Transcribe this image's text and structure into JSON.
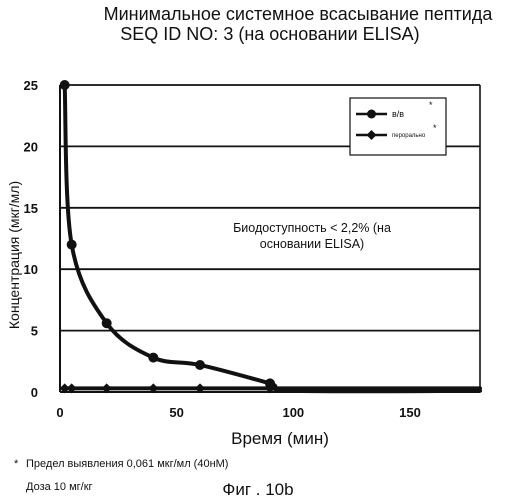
{
  "chart_data": {
    "type": "line",
    "title_lines": [
      "Минимальное системное всасывание пептида",
      "SEQ ID NO: 3 (на основании ELISA)"
    ],
    "xlabel": "Время (мин)",
    "ylabel": "Концентрация (мкг/мл)",
    "xlim": [
      0,
      180
    ],
    "ylim": [
      0,
      25
    ],
    "x_ticks": [
      0,
      50,
      100,
      150
    ],
    "y_ticks": [
      0,
      5,
      10,
      15,
      20,
      25
    ],
    "grid": "horizontal",
    "legend_position": "top-right",
    "series": [
      {
        "name": "в/в",
        "marker": "circle",
        "color": "#111111",
        "x": [
          2,
          5,
          20,
          40,
          60,
          90,
          100,
          180
        ],
        "y": [
          25,
          12,
          5.6,
          2.8,
          2.2,
          0.7,
          0.1,
          0.1
        ]
      },
      {
        "name": "перорально",
        "marker": "diamond",
        "color": "#111111",
        "x": [
          2,
          5,
          20,
          40,
          60,
          90,
          180
        ],
        "y": [
          0.3,
          0.3,
          0.3,
          0.3,
          0.3,
          0.3,
          0.3
        ]
      }
    ],
    "legend_asterisk": "*",
    "annotation": "Биодоступность < 2,2% (на основании ELISA)",
    "footnotes": [
      "Предел выявления 0,061 мкг/мл (40нМ)",
      "Доза 10 мг/кг"
    ],
    "footnote_marker": "*",
    "figure_label": "Фиг . 10b"
  }
}
